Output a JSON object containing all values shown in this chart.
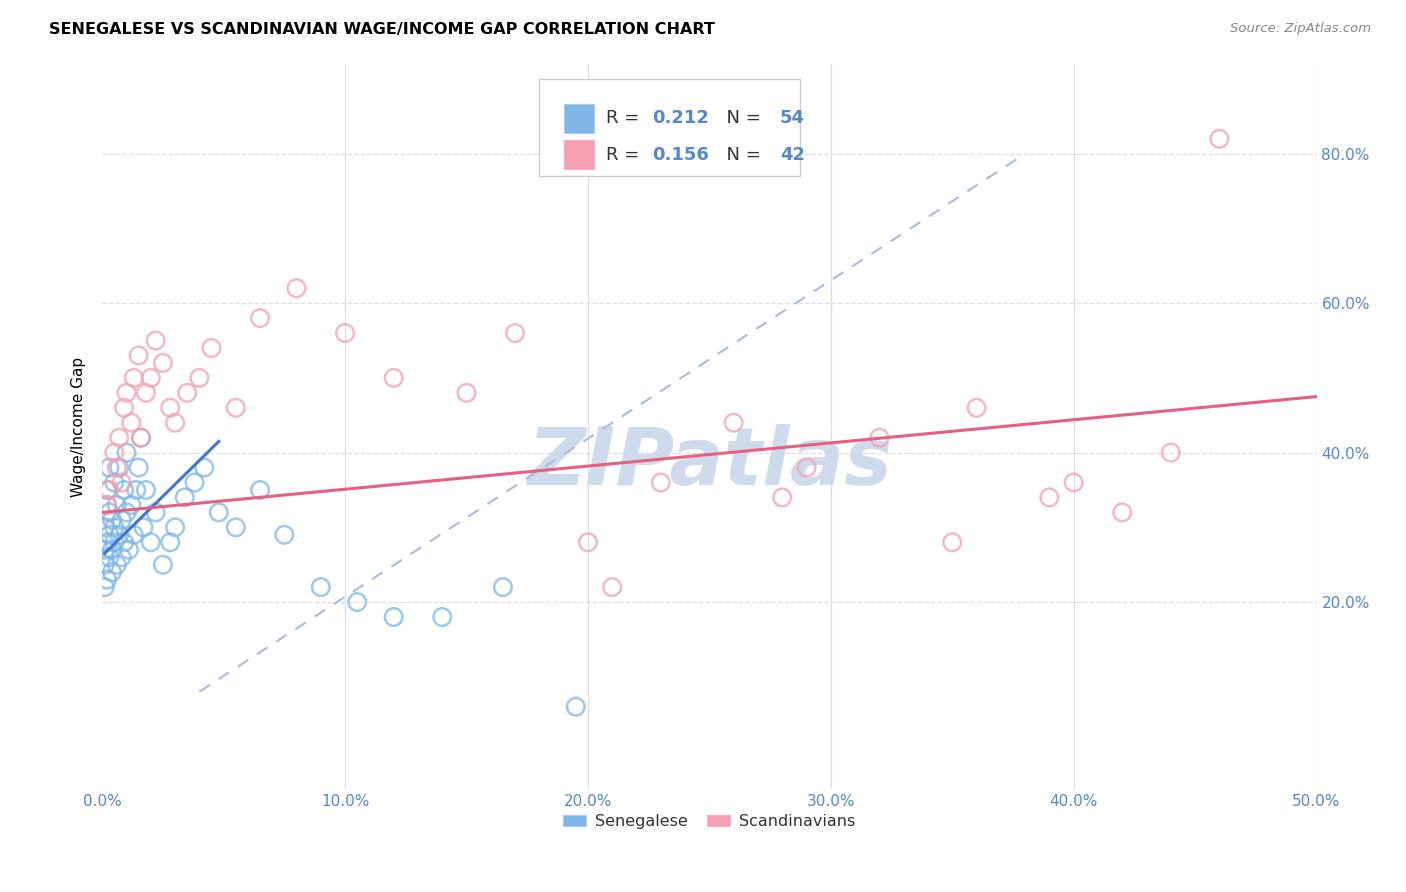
{
  "title": "SENEGALESE VS SCANDINAVIAN WAGE/INCOME GAP CORRELATION CHART",
  "source": "Source: ZipAtlas.com",
  "ylabel": "Wage/Income Gap",
  "xlim": [
    0.0,
    0.5
  ],
  "ylim": [
    -0.05,
    0.92
  ],
  "xticks": [
    0.0,
    0.1,
    0.2,
    0.3,
    0.4,
    0.5
  ],
  "yticks": [
    0.2,
    0.4,
    0.6,
    0.8
  ],
  "ytick_labels": [
    "20.0%",
    "40.0%",
    "60.0%",
    "80.0%"
  ],
  "xtick_labels": [
    "0.0%",
    "10.0%",
    "20.0%",
    "30.0%",
    "40.0%",
    "50.0%"
  ],
  "senegalese_R": 0.212,
  "senegalese_N": 54,
  "scandinavian_R": 0.156,
  "scandinavian_N": 42,
  "blue_color": "#7EB6E8",
  "pink_color": "#F5A0B0",
  "blue_line_color": "#4477CC",
  "pink_line_color": "#E86080",
  "diagonal_color": "#AABBDD",
  "watermark": "ZIPatlas",
  "watermark_color": "#C8D8EC",
  "tick_color": "#5588CC",
  "grid_color": "#DDDDEE",
  "senegalese_x": [
    0.001,
    0.001,
    0.001,
    0.001,
    0.002,
    0.002,
    0.002,
    0.002,
    0.003,
    0.003,
    0.003,
    0.003,
    0.004,
    0.004,
    0.004,
    0.005,
    0.005,
    0.005,
    0.006,
    0.006,
    0.007,
    0.007,
    0.008,
    0.008,
    0.009,
    0.009,
    0.01,
    0.01,
    0.011,
    0.012,
    0.013,
    0.014,
    0.015,
    0.016,
    0.017,
    0.018,
    0.02,
    0.022,
    0.025,
    0.028,
    0.03,
    0.034,
    0.038,
    0.042,
    0.048,
    0.055,
    0.065,
    0.075,
    0.09,
    0.105,
    0.12,
    0.14,
    0.165,
    0.195
  ],
  "senegalese_y": [
    0.27,
    0.25,
    0.22,
    0.3,
    0.33,
    0.28,
    0.23,
    0.35,
    0.32,
    0.26,
    0.29,
    0.38,
    0.27,
    0.31,
    0.24,
    0.3,
    0.36,
    0.28,
    0.33,
    0.25,
    0.29,
    0.38,
    0.31,
    0.26,
    0.35,
    0.28,
    0.4,
    0.32,
    0.27,
    0.33,
    0.29,
    0.35,
    0.38,
    0.42,
    0.3,
    0.35,
    0.28,
    0.32,
    0.25,
    0.28,
    0.3,
    0.34,
    0.36,
    0.38,
    0.32,
    0.3,
    0.35,
    0.29,
    0.22,
    0.2,
    0.18,
    0.18,
    0.22,
    0.06
  ],
  "scandinavian_x": [
    0.002,
    0.003,
    0.005,
    0.006,
    0.007,
    0.008,
    0.009,
    0.01,
    0.012,
    0.013,
    0.015,
    0.016,
    0.018,
    0.02,
    0.022,
    0.025,
    0.028,
    0.03,
    0.035,
    0.04,
    0.045,
    0.055,
    0.065,
    0.08,
    0.1,
    0.12,
    0.15,
    0.17,
    0.2,
    0.23,
    0.26,
    0.29,
    0.32,
    0.36,
    0.4,
    0.42,
    0.44,
    0.21,
    0.28,
    0.35,
    0.39,
    0.46
  ],
  "scandinavian_y": [
    0.33,
    0.35,
    0.4,
    0.38,
    0.42,
    0.36,
    0.46,
    0.48,
    0.44,
    0.5,
    0.53,
    0.42,
    0.48,
    0.5,
    0.55,
    0.52,
    0.46,
    0.44,
    0.48,
    0.5,
    0.54,
    0.46,
    0.58,
    0.62,
    0.56,
    0.5,
    0.48,
    0.56,
    0.28,
    0.36,
    0.44,
    0.38,
    0.42,
    0.46,
    0.36,
    0.32,
    0.4,
    0.22,
    0.34,
    0.28,
    0.34,
    0.82
  ],
  "blue_line_x": [
    0.001,
    0.048
  ],
  "blue_line_y": [
    0.265,
    0.415
  ],
  "pink_line_x": [
    0.0,
    0.5
  ],
  "pink_line_y": [
    0.32,
    0.475
  ],
  "diag_line_x": [
    0.04,
    0.38
  ],
  "diag_line_y": [
    0.08,
    0.8
  ]
}
